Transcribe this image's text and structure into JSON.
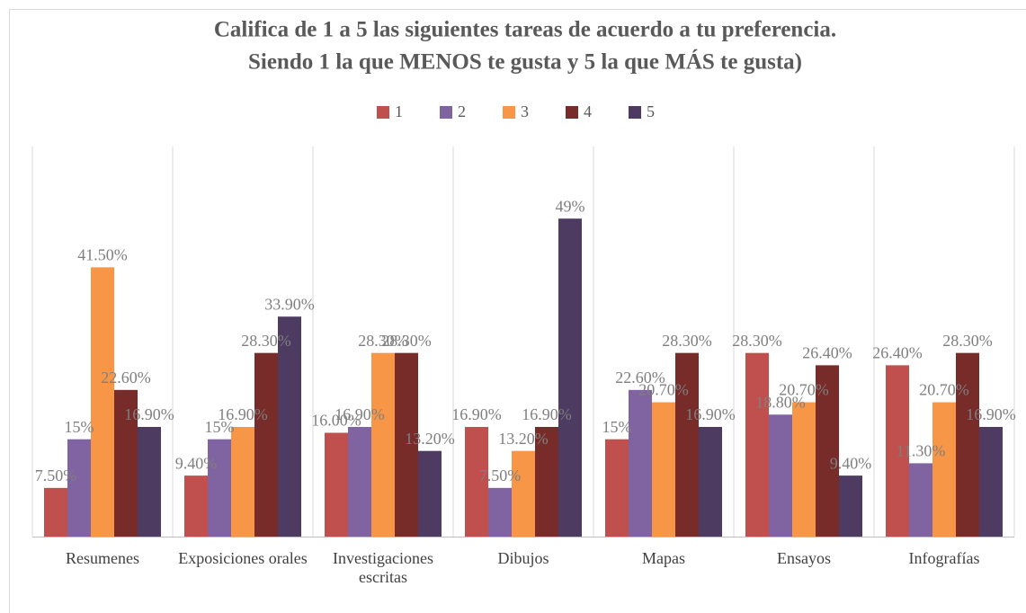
{
  "chart_data": {
    "type": "bar",
    "title": [
      "Califica de 1 a 5 las siguientes tareas de acuerdo a tu preferencia.",
      "Siendo 1 la que MENOS te gusta y 5 la que MÁS te gusta)"
    ],
    "categories": [
      "Resumenes",
      "Exposiciones orales",
      "Investigaciones escritas",
      "Dibujos",
      "Mapas",
      "Ensayos",
      "Infografías"
    ],
    "series": [
      {
        "name": "1",
        "color": "#c0504d",
        "values": [
          7.5,
          9.4,
          16.0,
          16.9,
          15,
          28.3,
          26.4
        ],
        "value_labels": [
          "7.50%",
          "9.40%",
          "16.00%",
          "16.90%",
          "15%",
          "28.30%",
          "26.40%"
        ]
      },
      {
        "name": "2",
        "color": "#8064a2",
        "values": [
          15,
          15,
          16.9,
          7.5,
          22.6,
          18.8,
          11.3
        ],
        "value_labels": [
          "15%",
          "15%",
          "16.90%",
          "7.50%",
          "22.60%",
          "18.80%",
          "11.30%"
        ]
      },
      {
        "name": "3",
        "color": "#f79646",
        "values": [
          41.5,
          16.9,
          28.3,
          13.2,
          20.7,
          20.7,
          20.7
        ],
        "value_labels": [
          "41.50%",
          "16.90%",
          "28.30%",
          "13.20%",
          "20.70%",
          "20.70%",
          "20.70%"
        ]
      },
      {
        "name": "4",
        "color": "#772c2a",
        "values": [
          22.6,
          28.3,
          28.3,
          16.9,
          28.3,
          26.4,
          28.3
        ],
        "value_labels": [
          "22.60%",
          "28.30%",
          "28.30%",
          "16.90%",
          "28.30%",
          "26.40%",
          "28.30%"
        ]
      },
      {
        "name": "5",
        "color": "#4d3b62",
        "values": [
          16.9,
          33.9,
          13.2,
          49,
          16.9,
          9.4,
          16.9
        ],
        "value_labels": [
          "16.90%",
          "33.90%",
          "13.20%",
          "49%",
          "16.90%",
          "9.40%",
          "16.90%"
        ]
      }
    ],
    "legend": "top"
  }
}
